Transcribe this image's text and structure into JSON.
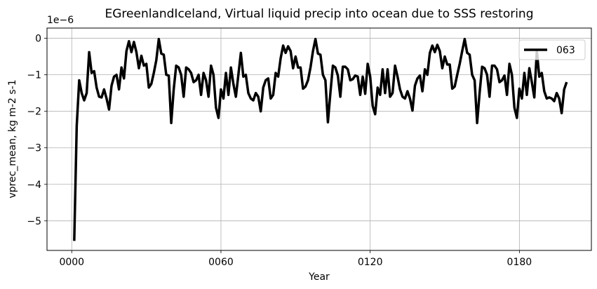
{
  "chart_data": {
    "type": "line",
    "title": "EGreenlandIceland, Virtual liquid precip into ocean due to SSS restoring",
    "xlabel": "Year",
    "ylabel": "vprec_mean, kg m-2 s-1",
    "offset_text": "1e−6",
    "xlim": [
      -9.95,
      208.95
    ],
    "ylim": [
      -5.81,
      0.28
    ],
    "x_ticks": [
      0,
      60,
      120,
      180
    ],
    "x_tick_labels": [
      "0000",
      "0060",
      "0120",
      "0180"
    ],
    "y_ticks": [
      -5,
      -4,
      -3,
      -2,
      -1,
      0
    ],
    "y_tick_labels": [
      "−5",
      "−4",
      "−3",
      "−2",
      "−1",
      "0"
    ],
    "grid": true,
    "legend": {
      "position": "top-right",
      "entries": [
        "063"
      ]
    },
    "series": [
      {
        "name": "063",
        "color": "#000000",
        "x": [
          1,
          2,
          3,
          4,
          5,
          6,
          7,
          8,
          9,
          10,
          11,
          12,
          13,
          14,
          15,
          16,
          17,
          18,
          19,
          20,
          21,
          22,
          23,
          24,
          25,
          26,
          27,
          28,
          29,
          30,
          31,
          32,
          33,
          34,
          35,
          36,
          37,
          38,
          39,
          40,
          41,
          42,
          43,
          44,
          45,
          46,
          47,
          48,
          49,
          50,
          51,
          52,
          53,
          54,
          55,
          56,
          57,
          58,
          59,
          60,
          61,
          62,
          63,
          64,
          65,
          66,
          67,
          68,
          69,
          70,
          71,
          72,
          73,
          74,
          75,
          76,
          77,
          78,
          79,
          80,
          81,
          82,
          83,
          84,
          85,
          86,
          87,
          88,
          89,
          90,
          91,
          92,
          93,
          94,
          95,
          96,
          97,
          98,
          99,
          100,
          101,
          102,
          103,
          104,
          105,
          106,
          107,
          108,
          109,
          110,
          111,
          112,
          113,
          114,
          115,
          116,
          117,
          118,
          119,
          120,
          121,
          122,
          123,
          124,
          125,
          126,
          127,
          128,
          129,
          130,
          131,
          132,
          133,
          134,
          135,
          136,
          137,
          138,
          139,
          140,
          141,
          142,
          143,
          144,
          145,
          146,
          147,
          148,
          149,
          150,
          151,
          152,
          153,
          154,
          155,
          156,
          157,
          158,
          159,
          160,
          161,
          162,
          163,
          164,
          165,
          166,
          167,
          168,
          169,
          170,
          171,
          172,
          173,
          174,
          175,
          176,
          177,
          178,
          179,
          180,
          181,
          182,
          183,
          184,
          185,
          186,
          187,
          188,
          189,
          190,
          191,
          192,
          193,
          194,
          195,
          196,
          197,
          198,
          199
        ],
        "y": [
          -5.55,
          -2.4,
          -1.15,
          -1.5,
          -1.7,
          -1.5,
          -0.38,
          -0.95,
          -0.9,
          -1.35,
          -1.6,
          -1.62,
          -1.4,
          -1.65,
          -1.95,
          -1.3,
          -1.05,
          -1.0,
          -1.4,
          -0.8,
          -1.1,
          -0.35,
          -0.08,
          -0.38,
          -0.1,
          -0.38,
          -0.82,
          -0.48,
          -0.75,
          -0.7,
          -1.35,
          -1.25,
          -0.95,
          -0.6,
          -0.02,
          -0.42,
          -0.45,
          -1.0,
          -1.02,
          -2.32,
          -1.4,
          -0.75,
          -0.8,
          -1.0,
          -1.6,
          -0.8,
          -0.85,
          -0.95,
          -1.2,
          -1.15,
          -1.0,
          -1.55,
          -0.95,
          -1.15,
          -1.6,
          -0.75,
          -1.0,
          -1.9,
          -2.18,
          -1.4,
          -1.65,
          -0.95,
          -1.55,
          -0.8,
          -1.25,
          -1.6,
          -1.0,
          -0.4,
          -1.05,
          -1.0,
          -1.5,
          -1.65,
          -1.7,
          -1.5,
          -1.6,
          -2.0,
          -1.35,
          -1.15,
          -1.1,
          -1.65,
          -1.55,
          -0.95,
          -1.05,
          -0.55,
          -0.2,
          -0.4,
          -0.22,
          -0.35,
          -0.82,
          -0.5,
          -0.8,
          -0.8,
          -1.38,
          -1.32,
          -1.15,
          -0.8,
          -0.35,
          -0.02,
          -0.42,
          -0.45,
          -1.0,
          -1.15,
          -2.3,
          -1.5,
          -0.75,
          -0.8,
          -1.02,
          -1.6,
          -0.78,
          -0.78,
          -0.85,
          -1.15,
          -1.12,
          -1.02,
          -1.05,
          -1.55,
          -1.05,
          -1.52,
          -0.7,
          -1.05,
          -1.85,
          -2.08,
          -1.35,
          -1.55,
          -0.85,
          -1.5,
          -0.85,
          -1.6,
          -1.5,
          -0.75,
          -1.05,
          -1.4,
          -1.6,
          -1.65,
          -1.45,
          -1.65,
          -1.98,
          -1.3,
          -1.1,
          -1.02,
          -1.45,
          -0.85,
          -1.0,
          -0.4,
          -0.2,
          -0.38,
          -0.18,
          -0.35,
          -0.82,
          -0.5,
          -0.72,
          -0.72,
          -1.38,
          -1.32,
          -1.0,
          -0.7,
          -0.35,
          -0.02,
          -0.4,
          -0.45,
          -1.0,
          -1.15,
          -2.32,
          -1.5,
          -0.78,
          -0.82,
          -1.0,
          -1.6,
          -0.75,
          -0.75,
          -0.85,
          -1.2,
          -1.15,
          -1.02,
          -1.55,
          -0.7,
          -1.0,
          -1.9,
          -2.18,
          -1.38,
          -1.65,
          -0.95,
          -1.55,
          -0.82,
          -1.2,
          -1.62,
          -0.35,
          -1.05,
          -0.95,
          -1.45,
          -1.65,
          -1.62,
          -1.65,
          -1.72,
          -1.5,
          -1.65,
          -2.05,
          -1.4,
          -1.2
        ]
      }
    ]
  }
}
